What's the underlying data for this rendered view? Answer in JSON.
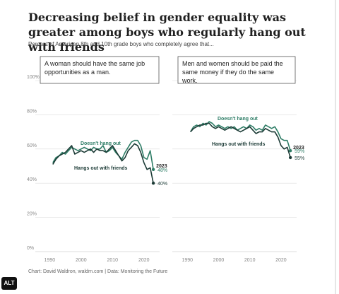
{
  "title": "Decreasing belief in gender equality was greater among boys who regularly hang out with friends",
  "subtitle": "Percent of American 8th and 10th grade boys who completely agree that...",
  "caption": "Chart: David Waldron, waldrn.com | Data: Monitoring the Future",
  "alt_badge": "ALT",
  "colors": {
    "doesnt_hang_out": "#2e7d66",
    "hangs_out": "#1b3a35",
    "grid": "#dddddd",
    "axis_text": "#888888"
  },
  "chart_data": [
    {
      "type": "line",
      "statement": "A woman should have the same job opportunities as a man.",
      "ylim": [
        0,
        100
      ],
      "yticks": [
        "0%",
        "20%",
        "40%",
        "60%",
        "80%",
        "100%"
      ],
      "xticks": [
        "1990",
        "2000",
        "2010",
        "2020"
      ],
      "xlim": [
        1987,
        2025
      ],
      "end_year_label": "2023",
      "series": [
        {
          "name": "Doesn't hang out",
          "end_label": "48%",
          "x": [
            1991,
            1992,
            1993,
            1994,
            1995,
            1996,
            1997,
            1998,
            1999,
            2000,
            2001,
            2002,
            2003,
            2004,
            2005,
            2006,
            2007,
            2008,
            2009,
            2010,
            2011,
            2012,
            2013,
            2014,
            2015,
            2016,
            2017,
            2018,
            2019,
            2020,
            2021,
            2022,
            2023
          ],
          "y": [
            52,
            55,
            56,
            58,
            57,
            59,
            61,
            60,
            59,
            60,
            61,
            60,
            59,
            61,
            60,
            60,
            62,
            58,
            59,
            61,
            58,
            56,
            54,
            58,
            61,
            64,
            65,
            65,
            62,
            55,
            54,
            59,
            48
          ]
        },
        {
          "name": "Hangs out with friends",
          "end_label": "40%",
          "x": [
            1991,
            1992,
            1993,
            1994,
            1995,
            1996,
            1997,
            1998,
            1999,
            2000,
            2001,
            2002,
            2003,
            2004,
            2005,
            2006,
            2007,
            2008,
            2009,
            2010,
            2011,
            2012,
            2013,
            2014,
            2015,
            2016,
            2017,
            2018,
            2019,
            2020,
            2021,
            2022,
            2023
          ],
          "y": [
            51,
            54,
            56,
            57,
            58,
            60,
            62,
            57,
            58,
            59,
            58,
            59,
            60,
            58,
            60,
            59,
            59,
            58,
            60,
            62,
            59,
            56,
            53,
            55,
            59,
            61,
            63,
            62,
            58,
            52,
            48,
            49,
            40
          ]
        }
      ]
    },
    {
      "type": "line",
      "statement": "Men and women should be paid the same money if they do the same work.",
      "ylim": [
        0,
        100
      ],
      "yticks": [
        "0%",
        "20%",
        "40%",
        "60%",
        "80%",
        "100%"
      ],
      "xticks": [
        "1990",
        "2000",
        "2010",
        "2020"
      ],
      "xlim": [
        1987,
        2025
      ],
      "end_year_label": "2023",
      "series": [
        {
          "name": "Doesn't hang out",
          "end_label": "59%",
          "x": [
            1991,
            1992,
            1993,
            1994,
            1995,
            1996,
            1997,
            1998,
            1999,
            2000,
            2001,
            2002,
            2003,
            2004,
            2005,
            2006,
            2007,
            2008,
            2009,
            2010,
            2011,
            2012,
            2013,
            2014,
            2015,
            2016,
            2017,
            2018,
            2019,
            2020,
            2021,
            2022,
            2023
          ],
          "y": [
            70,
            73,
            74,
            73,
            75,
            74,
            76,
            75,
            73,
            74,
            73,
            72,
            73,
            72,
            73,
            71,
            72,
            73,
            72,
            74,
            73,
            71,
            72,
            71,
            74,
            73,
            72,
            73,
            70,
            66,
            65,
            65,
            59
          ]
        },
        {
          "name": "Hangs out with friends",
          "end_label": "55%",
          "x": [
            1991,
            1992,
            1993,
            1994,
            1995,
            1996,
            1997,
            1998,
            1999,
            2000,
            2001,
            2002,
            2003,
            2004,
            2005,
            2006,
            2007,
            2008,
            2009,
            2010,
            2011,
            2012,
            2013,
            2014,
            2015,
            2016,
            2017,
            2018,
            2019,
            2020,
            2021,
            2022,
            2023
          ],
          "y": [
            70,
            72,
            73,
            74,
            74,
            75,
            75,
            73,
            72,
            73,
            72,
            71,
            72,
            73,
            72,
            71,
            70,
            71,
            72,
            73,
            71,
            69,
            70,
            70,
            72,
            71,
            70,
            70,
            67,
            62,
            60,
            61,
            55
          ]
        }
      ]
    }
  ]
}
